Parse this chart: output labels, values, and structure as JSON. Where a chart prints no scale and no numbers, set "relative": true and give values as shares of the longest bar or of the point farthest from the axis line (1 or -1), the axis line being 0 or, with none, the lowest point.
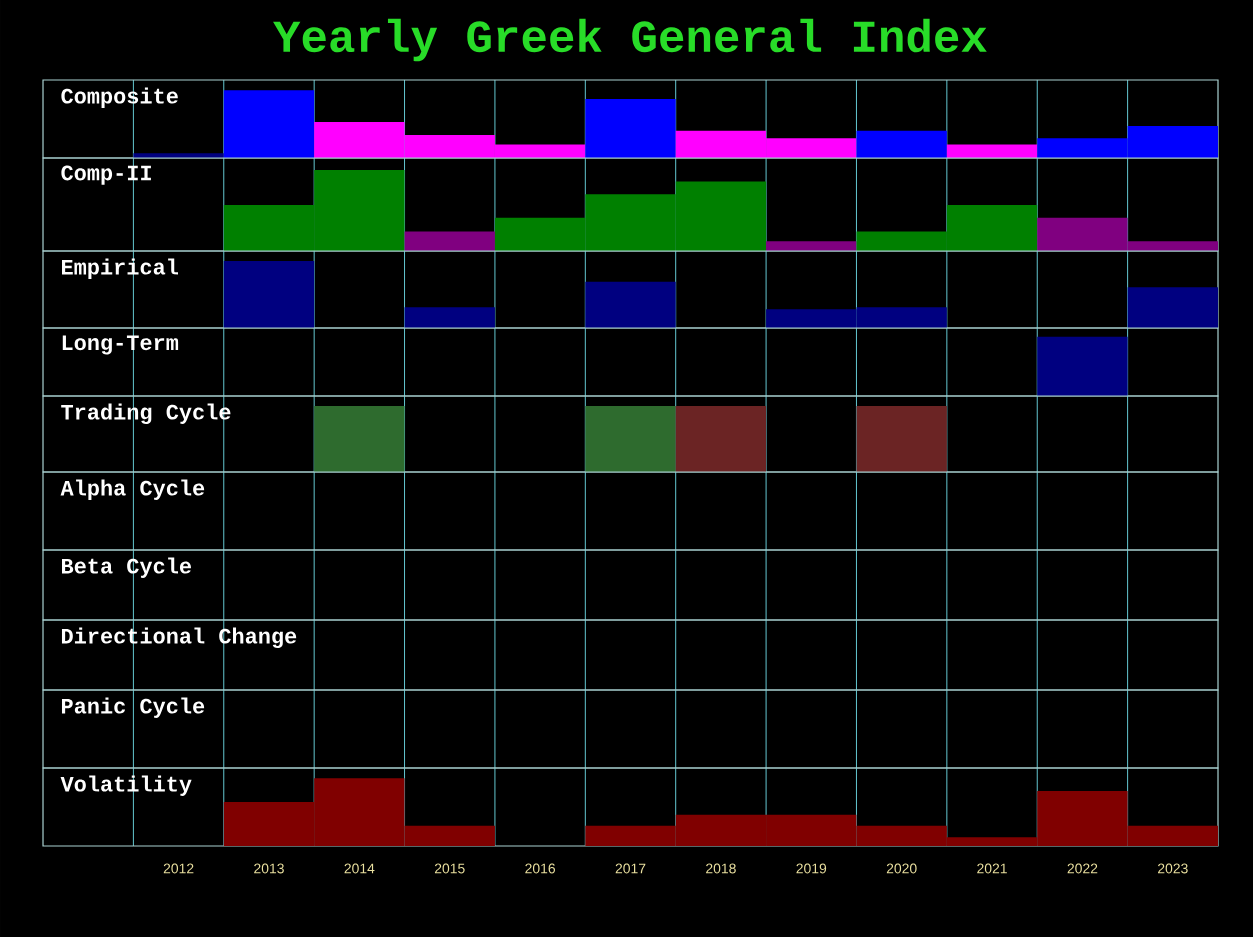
{
  "chart_data": [
    {
      "type": "bar",
      "title": "Yearly Greek General Index",
      "ylabel": "Composite",
      "relative": true,
      "grid": "x",
      "tick_labels": false,
      "categories": [
        "2012",
        "2013",
        "2014",
        "2015",
        "2016",
        "2017",
        "2018",
        "2019",
        "2020",
        "2021",
        "2022",
        "2023"
      ],
      "values": [
        0.07,
        1,
        0.53,
        0.34,
        0.2,
        0.87,
        0.4,
        0.29,
        0.4,
        0.2,
        0.29,
        0.47
      ],
      "colors": [
        "#000080",
        "#0000ff",
        "#ff00ff",
        "#ff00ff",
        "#ff00ff",
        "#0000ff",
        "#ff00ff",
        "#ff00ff",
        "#0000ff",
        "#ff00ff",
        "#0000ff",
        "#0000ff"
      ]
    },
    {
      "type": "bar",
      "ylabel": "Comp-II",
      "relative": true,
      "grid": "x",
      "tick_labels": false,
      "categories": [
        "2012",
        "2013",
        "2014",
        "2015",
        "2016",
        "2017",
        "2018",
        "2019",
        "2020",
        "2021",
        "2022",
        "2023"
      ],
      "values": [
        null,
        0.57,
        1,
        0.24,
        0.41,
        0.7,
        0.86,
        0.12,
        0.24,
        0.57,
        0.41,
        0.12
      ],
      "colors": [
        null,
        "#008000",
        "#008000",
        "#800080",
        "#008000",
        "#008000",
        "#008000",
        "#800080",
        "#008000",
        "#008000",
        "#800080",
        "#800080"
      ]
    },
    {
      "type": "bar",
      "ylabel": "Empirical",
      "relative": true,
      "grid": "x",
      "tick_labels": false,
      "categories": [
        "2012",
        "2013",
        "2014",
        "2015",
        "2016",
        "2017",
        "2018",
        "2019",
        "2020",
        "2021",
        "2022",
        "2023"
      ],
      "values": [
        null,
        1,
        null,
        0.31,
        null,
        0.69,
        null,
        0.28,
        0.31,
        null,
        null,
        0.61
      ],
      "colors": [
        null,
        "#000080",
        null,
        "#000080",
        null,
        "#000080",
        null,
        "#000080",
        "#000080",
        null,
        null,
        "#000080"
      ]
    },
    {
      "type": "bar",
      "ylabel": "Long-Term",
      "relative": true,
      "grid": "x",
      "tick_labels": false,
      "categories": [
        "2012",
        "2013",
        "2014",
        "2015",
        "2016",
        "2017",
        "2018",
        "2019",
        "2020",
        "2021",
        "2022",
        "2023"
      ],
      "values": [
        null,
        null,
        null,
        null,
        null,
        null,
        null,
        null,
        null,
        null,
        1,
        null
      ],
      "colors": [
        null,
        null,
        null,
        null,
        null,
        null,
        null,
        null,
        null,
        null,
        "#000080",
        null
      ]
    },
    {
      "type": "bar",
      "ylabel": "Trading Cycle",
      "relative": true,
      "grid": "x",
      "tick_labels": false,
      "categories": [
        "2012",
        "2013",
        "2014",
        "2015",
        "2016",
        "2017",
        "2018",
        "2019",
        "2020",
        "2021",
        "2022",
        "2023"
      ],
      "values": [
        null,
        null,
        1,
        null,
        null,
        1,
        1,
        null,
        1,
        null,
        null,
        null
      ],
      "colors": [
        null,
        null,
        "#2e6b2e",
        null,
        null,
        "#2e6b2e",
        "#6b2424",
        null,
        "#6b2424",
        null,
        null,
        null
      ]
    },
    {
      "type": "other",
      "ylabel": "Alpha Cycle"
    },
    {
      "type": "other",
      "ylabel": "Beta Cycle"
    },
    {
      "type": "other",
      "ylabel": "Directional Change"
    },
    {
      "type": "other",
      "ylabel": "Panic Cycle"
    },
    {
      "type": "bar",
      "ylabel": "Volatility",
      "relative": true,
      "grid": "x",
      "tick_labels": "x",
      "categories": [
        "2012",
        "2013",
        "2014",
        "2015",
        "2016",
        "2017",
        "2018",
        "2019",
        "2020",
        "2021",
        "2022",
        "2023"
      ],
      "values": [
        null,
        0.65,
        1,
        0.3,
        null,
        0.3,
        0.46,
        0.46,
        0.3,
        0.13,
        0.81,
        0.3
      ],
      "colors": [
        null,
        "#800000",
        "#800000",
        "#800000",
        null,
        "#800000",
        "#800000",
        "#800000",
        "#800000",
        "#800000",
        "#800000",
        "#800000"
      ]
    }
  ]
}
